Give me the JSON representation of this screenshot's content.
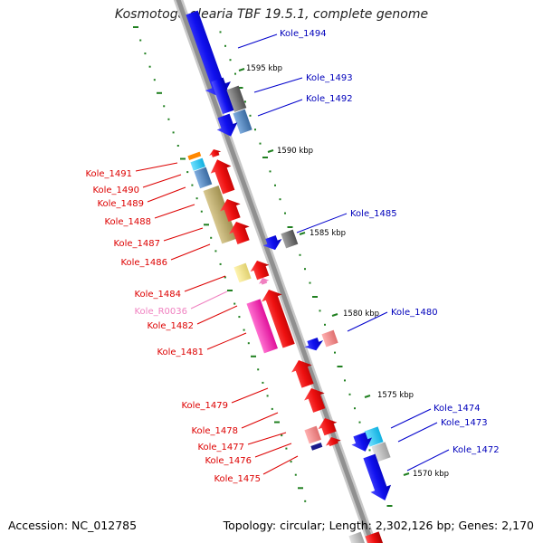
{
  "title": "Kosmotoga olearia TBF 19.5.1, complete genome",
  "footer": {
    "accession": "Accession: NC_012785",
    "summary": "Topology: circular; Length: 2,302,126 bp; Genes: 2,170"
  },
  "colors": {
    "forward_gene": "#1010ee",
    "reverse_gene": "#ee1010",
    "ncrna": "#f080c0",
    "hypothetical": "#707070",
    "steel": "#5a8ac0",
    "khaki": "#c0b070",
    "tick": "#208020"
  },
  "kbp_ticks": [
    "1595 kbp",
    "1590 kbp",
    "1585 kbp",
    "1580 kbp",
    "1575 kbp",
    "1570 kbp"
  ],
  "genes_right": [
    {
      "label": "Kole_1494",
      "color": "#0000bb"
    },
    {
      "label": "Kole_1493",
      "color": "#0000bb"
    },
    {
      "label": "Kole_1492",
      "color": "#0000bb"
    },
    {
      "label": "Kole_1485",
      "color": "#0000bb"
    },
    {
      "label": "Kole_1480",
      "color": "#0000bb"
    },
    {
      "label": "Kole_1474",
      "color": "#0000bb"
    },
    {
      "label": "Kole_1473",
      "color": "#0000bb"
    },
    {
      "label": "Kole_1472",
      "color": "#0000bb"
    }
  ],
  "genes_left": [
    {
      "label": "Kole_1491",
      "color": "#dd0000"
    },
    {
      "label": "Kole_1490",
      "color": "#dd0000"
    },
    {
      "label": "Kole_1489",
      "color": "#dd0000"
    },
    {
      "label": "Kole_1488",
      "color": "#dd0000"
    },
    {
      "label": "Kole_1487",
      "color": "#dd0000"
    },
    {
      "label": "Kole_1486",
      "color": "#dd0000"
    },
    {
      "label": "Kole_1484",
      "color": "#dd0000"
    },
    {
      "label": "Kole_R0036",
      "color": "#f080c0"
    },
    {
      "label": "Kole_1482",
      "color": "#dd0000"
    },
    {
      "label": "Kole_1481",
      "color": "#dd0000"
    },
    {
      "label": "Kole_1479",
      "color": "#dd0000"
    },
    {
      "label": "Kole_1478",
      "color": "#dd0000"
    },
    {
      "label": "Kole_1477",
      "color": "#dd0000"
    },
    {
      "label": "Kole_1476",
      "color": "#dd0000"
    },
    {
      "label": "Kole_1475",
      "color": "#dd0000"
    }
  ]
}
